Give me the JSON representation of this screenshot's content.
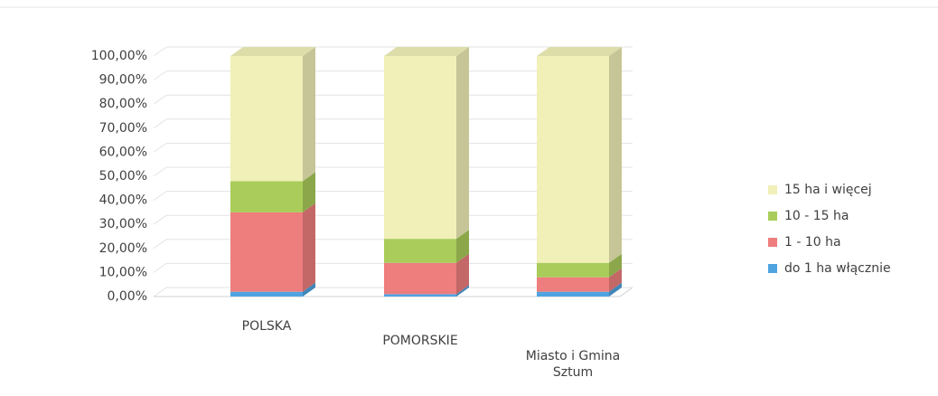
{
  "chart_data": {
    "type": "stacked_bar_3d",
    "categories": [
      "POLSKA",
      "POMORSKIE",
      "Miasto i Gmina Sztum"
    ],
    "series": [
      {
        "name": "do 1 ha włącznie",
        "color": "#4fa3e0",
        "values": [
          2,
          1,
          2
        ]
      },
      {
        "name": "1 - 10 ha",
        "color": "#ee7d7d",
        "values": [
          33,
          13,
          6
        ]
      },
      {
        "name": "10 - 15 ha",
        "color": "#a9cc5a",
        "values": [
          13,
          10,
          6
        ]
      },
      {
        "name": "15 ha i więcej",
        "color": "#f0f0b8",
        "values": [
          52,
          76,
          86
        ]
      }
    ],
    "ylim": [
      0,
      100
    ],
    "yticks": [
      {
        "value": 0,
        "label": "0,00%"
      },
      {
        "value": 10,
        "label": "10,00%"
      },
      {
        "value": 20,
        "label": "20,00%"
      },
      {
        "value": 30,
        "label": "30,00%"
      },
      {
        "value": 40,
        "label": "40,00%"
      },
      {
        "value": 50,
        "label": "50,00%"
      },
      {
        "value": 60,
        "label": "60,00%"
      },
      {
        "value": 70,
        "label": "70,00%"
      },
      {
        "value": 80,
        "label": "80,00%"
      },
      {
        "value": 90,
        "label": "90,00%"
      },
      {
        "value": 100,
        "label": "100,00%"
      }
    ],
    "grid": true,
    "legend": "right"
  }
}
